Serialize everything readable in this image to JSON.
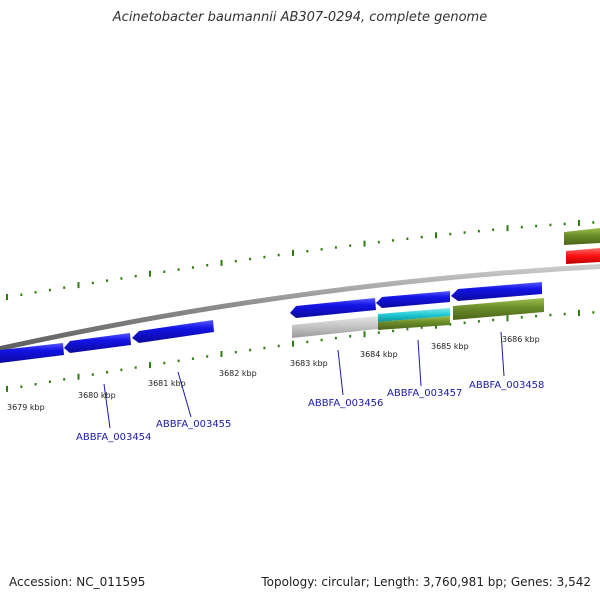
{
  "header": {
    "title": "Acinetobacter baumannii AB307-0294, complete genome"
  },
  "footer": {
    "accession": "Accession: NC_011595",
    "stats": "Topology: circular; Length: 3,760,981 bp; Genes: 3,542"
  },
  "map": {
    "ticks": [
      "3679 kbp",
      "3680 kbp",
      "3681 kbp",
      "3682 kbp",
      "3683 kbp",
      "3684 kbp",
      "3685 kbp",
      "3686 kbp"
    ],
    "gene_labels": [
      "ABBFA_003454",
      "ABBFA_003455",
      "ABBFA_003456",
      "ABBFA_003457",
      "ABBFA_003458"
    ],
    "colors": {
      "cds": "#1414e6",
      "olive": "#6b8c2a",
      "cyan": "#1ec8d2",
      "grey": "#bdbdbd",
      "red": "#ff1010",
      "tick": "#2e7d12",
      "backbone": "#888888",
      "label": "#1a1aa6"
    }
  }
}
